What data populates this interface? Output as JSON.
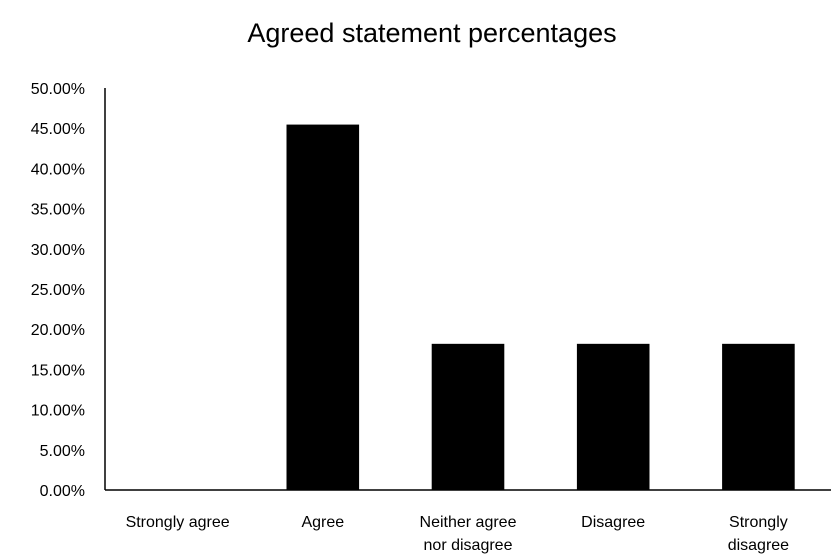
{
  "chart_data": {
    "type": "bar",
    "title": "Agreed statement percentages",
    "xlabel": "",
    "ylabel": "",
    "categories": [
      "Strongly agree",
      "Agree",
      "Neither agree nor disagree",
      "Disagree",
      "Strongly disagree"
    ],
    "category_label_lines": [
      [
        "Strongly agree"
      ],
      [
        "Agree"
      ],
      [
        "Neither agree",
        "nor disagree"
      ],
      [
        "Disagree"
      ],
      [
        "Strongly",
        "disagree"
      ]
    ],
    "values": [
      0,
      45.45,
      18.18,
      18.18,
      18.18
    ],
    "value_format": "percent_2dp",
    "ylim": [
      0,
      50
    ],
    "ytick_step": 5,
    "yticks": [
      "0.00%",
      "5.00%",
      "10.00%",
      "15.00%",
      "20.00%",
      "25.00%",
      "30.00%",
      "35.00%",
      "40.00%",
      "45.00%",
      "50.00%"
    ],
    "grid": false,
    "legend": "none",
    "bar_color": "#000000",
    "axis_color": "#000000"
  }
}
